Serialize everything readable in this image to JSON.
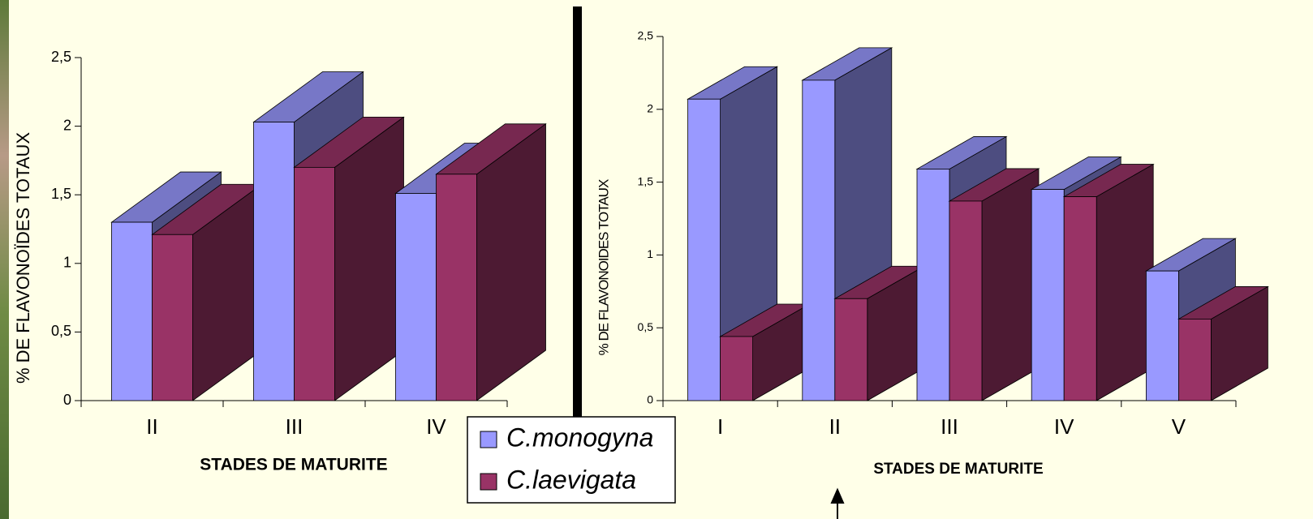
{
  "chart_data": [
    {
      "type": "bar3d",
      "categories": [
        "II",
        "III",
        "IV"
      ],
      "series": [
        {
          "name": "C.monogyna",
          "color": "#9999ff",
          "values": [
            1.3,
            2.03,
            1.51
          ]
        },
        {
          "name": "C.laevigata",
          "color": "#993366",
          "values": [
            1.21,
            1.7,
            1.65
          ]
        }
      ],
      "y_label": "% DE FLAVONOÏDES TOTAUX",
      "x_label": "STADES DE MATURITE",
      "ylim": [
        0,
        2.5
      ],
      "yticks": [
        0,
        {
          "value": 0.5,
          "label": "0,5"
        },
        1,
        {
          "value": 1.5,
          "label": "1,5"
        },
        2,
        {
          "value": 2.5,
          "label": "2,5"
        }
      ]
    },
    {
      "type": "bar3d",
      "categories": [
        "I",
        "II",
        "III",
        "IV",
        "V"
      ],
      "series": [
        {
          "color": "#9999ff",
          "values": [
            2.07,
            2.2,
            1.59,
            1.45,
            0.89
          ]
        },
        {
          "color": "#993366",
          "values": [
            0.44,
            0.7,
            1.37,
            1.4,
            0.56
          ]
        }
      ],
      "y_label": "% DE FLAVONOIDES TOTAUX",
      "x_label": "STADES DE MATURITE",
      "ylim": [
        0,
        2.5
      ],
      "yticks": [
        0,
        {
          "value": 0.5,
          "label": "0,5"
        },
        1,
        {
          "value": 1.5,
          "label": "1,5"
        },
        2,
        {
          "value": 2.5,
          "label": "2,5"
        }
      ]
    }
  ]
}
